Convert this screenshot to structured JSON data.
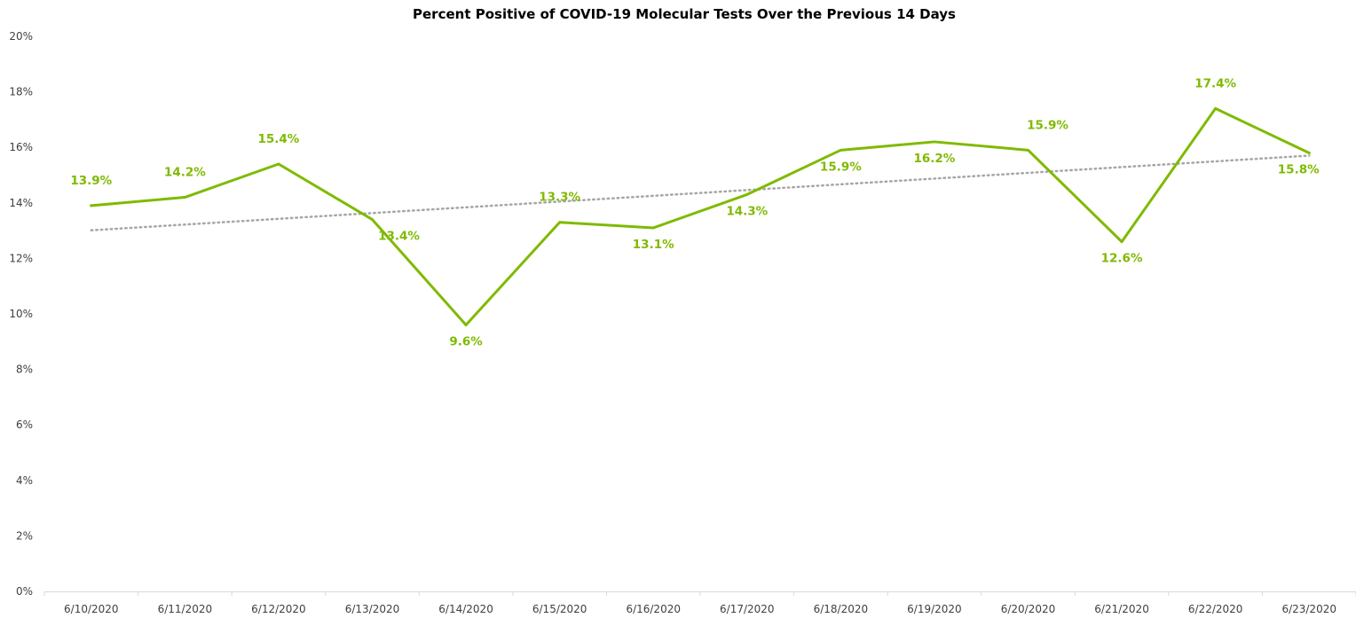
{
  "chart_data": {
    "type": "line",
    "title": "Percent Positive of COVID-19 Molecular Tests Over the Previous 14 Days",
    "xlabel": "",
    "ylabel": "",
    "categories": [
      "6/10/2020",
      "6/11/2020",
      "6/12/2020",
      "6/13/2020",
      "6/14/2020",
      "6/15/2020",
      "6/16/2020",
      "6/17/2020",
      "6/18/2020",
      "6/19/2020",
      "6/20/2020",
      "6/21/2020",
      "6/22/2020",
      "6/23/2020"
    ],
    "series": [
      {
        "values": [
          13.9,
          14.2,
          15.4,
          13.4,
          9.6,
          13.3,
          13.1,
          14.3,
          15.9,
          16.2,
          15.9,
          12.6,
          17.4,
          15.8
        ],
        "labels": [
          "13.9%",
          "14.2%",
          "15.4%",
          "13.4%",
          "9.6%",
          "13.3%",
          "13.1%",
          "14.3%",
          "15.9%",
          "16.2%",
          "15.9%",
          "12.6%",
          "17.4%",
          "15.8%"
        ],
        "color": "#7fba00"
      }
    ],
    "trendline": {
      "kind": "linear",
      "color": "#a6a6a6",
      "style": "dotted"
    },
    "ylim": [
      0,
      20
    ],
    "y_ticks": [
      "0%",
      "2%",
      "4%",
      "6%",
      "8%",
      "10%",
      "12%",
      "14%",
      "16%",
      "18%",
      "20%"
    ],
    "grid": false,
    "legend": "none"
  }
}
